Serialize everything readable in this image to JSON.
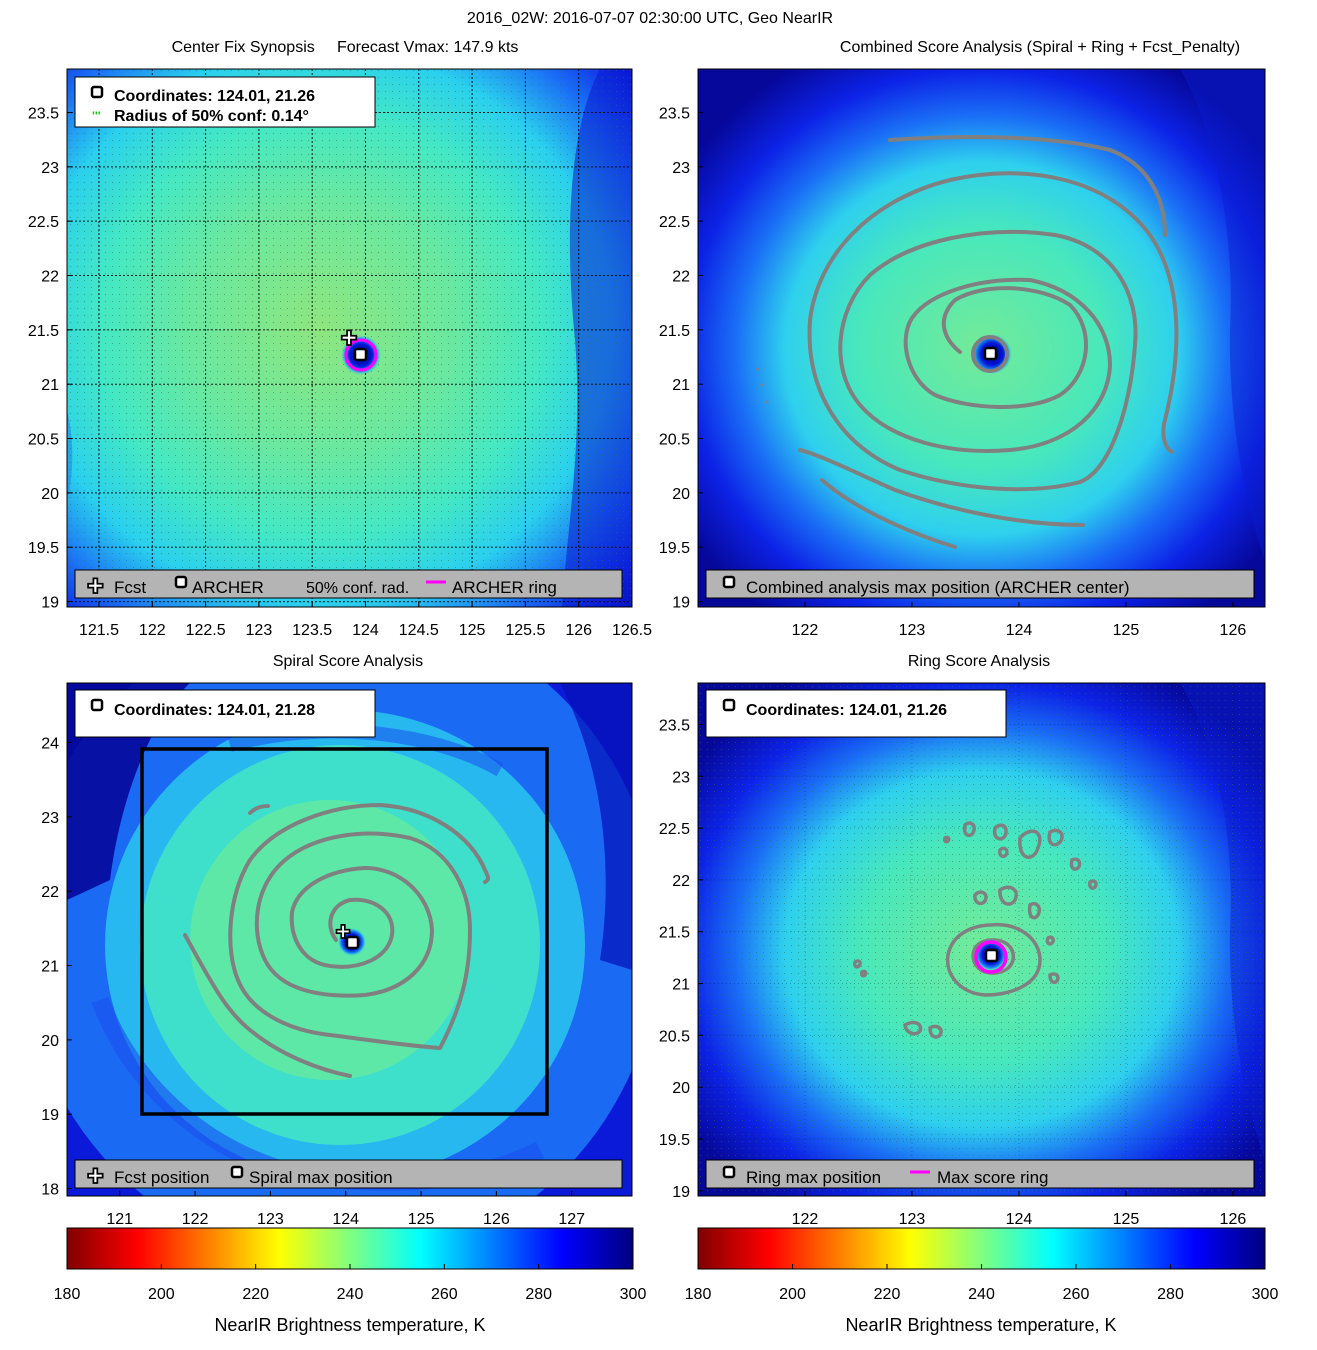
{
  "figure": {
    "title": "2016_02W: 2016-07-07 02:30:00 UTC, Geo NearIR"
  },
  "colors": {
    "background": "#ffffff",
    "archer_ring": "#ff00ff",
    "contour": "#808080",
    "legend_box": "#b4b4b4",
    "conf_radius": "#22c222",
    "spiral_box": "#000000"
  },
  "panels": {
    "synopsis": {
      "title": "Center Fix Synopsis     Forecast Vmax: 147.9 kts",
      "info_line1": "Coordinates: 124.01, 21.26",
      "info_line2": "Radius of 50% conf: 0.14°",
      "legend": {
        "fcst": "Fcst",
        "archer": "ARCHER",
        "conf": "50% conf. rad.",
        "ring": "ARCHER ring"
      }
    },
    "combined": {
      "title": "Combined Score Analysis (Spiral + Ring + Fcst_Penalty)",
      "legend": {
        "max": "Combined analysis max position (ARCHER center)"
      }
    },
    "spiral": {
      "title": "Spiral Score Analysis",
      "info_line1": "Coordinates: 124.01, 21.28",
      "legend": {
        "fcst": "Fcst position",
        "max": "Spiral max position"
      }
    },
    "ring": {
      "title": "Ring Score Analysis",
      "info_line1": "Coordinates: 124.01, 21.26",
      "legend": {
        "max": "Ring max position",
        "ring": "Max score ring"
      }
    }
  },
  "colorbar": {
    "label": "NearIR Brightness temperature, K",
    "ticks": [
      "180",
      "200",
      "220",
      "240",
      "260",
      "280",
      "300"
    ]
  },
  "chart_data": [
    {
      "type": "heatmap",
      "id": "synopsis",
      "title": "Center Fix Synopsis     Forecast Vmax: 147.9 kts",
      "xlim": [
        121.2,
        126.5
      ],
      "ylim": [
        18.95,
        23.9
      ],
      "xticks": [
        "121.5",
        "122",
        "122.5",
        "123",
        "123.5",
        "124",
        "124.5",
        "125",
        "125.5",
        "126",
        "126.5"
      ],
      "yticks": [
        "19",
        "19.5",
        "20",
        "20.5",
        "21",
        "21.5",
        "22",
        "22.5",
        "23",
        "23.5"
      ],
      "archer_center": [
        124.01,
        21.26
      ],
      "forecast_position": [
        123.92,
        21.44
      ],
      "conf_radius_deg": 0.14,
      "grid": true,
      "colorbar": {
        "label": "NearIR Brightness temperature, K",
        "range": [
          180,
          300
        ]
      }
    },
    {
      "type": "heatmap",
      "id": "combined",
      "title": "Combined Score Analysis (Spiral + Ring + Fcst_Penalty)",
      "xlim": [
        121.0,
        126.3
      ],
      "ylim": [
        18.95,
        23.9
      ],
      "xticks": [
        "122",
        "123",
        "124",
        "125",
        "126"
      ],
      "yticks": [
        "19",
        "19.5",
        "20",
        "20.5",
        "21",
        "21.5",
        "22",
        "22.5",
        "23",
        "23.5"
      ],
      "max_position": [
        124.01,
        21.26
      ],
      "grid": false
    },
    {
      "type": "heatmap",
      "id": "spiral",
      "title": "Spiral Score Analysis",
      "xlim": [
        120.3,
        127.8
      ],
      "ylim": [
        17.9,
        24.8
      ],
      "xticks": [
        "121",
        "122",
        "123",
        "124",
        "125",
        "126",
        "127"
      ],
      "yticks": [
        "18",
        "19",
        "20",
        "21",
        "22",
        "23",
        "24"
      ],
      "max_position": [
        124.01,
        21.28
      ],
      "forecast_position": [
        123.92,
        21.44
      ],
      "search_box": {
        "lon": [
          121.3,
          126.7
        ],
        "lat": [
          18.95,
          23.9
        ]
      },
      "grid": false
    },
    {
      "type": "heatmap",
      "id": "ring",
      "title": "Ring Score Analysis",
      "xlim": [
        121.0,
        126.3
      ],
      "ylim": [
        18.95,
        23.9
      ],
      "xticks": [
        "122",
        "123",
        "124",
        "125",
        "126"
      ],
      "yticks": [
        "19",
        "19.5",
        "20",
        "20.5",
        "21",
        "21.5",
        "22",
        "22.5",
        "23",
        "23.5"
      ],
      "max_position": [
        124.01,
        21.26
      ],
      "ring_radius_deg": 0.14,
      "grid": true,
      "colorbar": {
        "label": "NearIR Brightness temperature, K",
        "range": [
          180,
          300
        ]
      }
    }
  ]
}
